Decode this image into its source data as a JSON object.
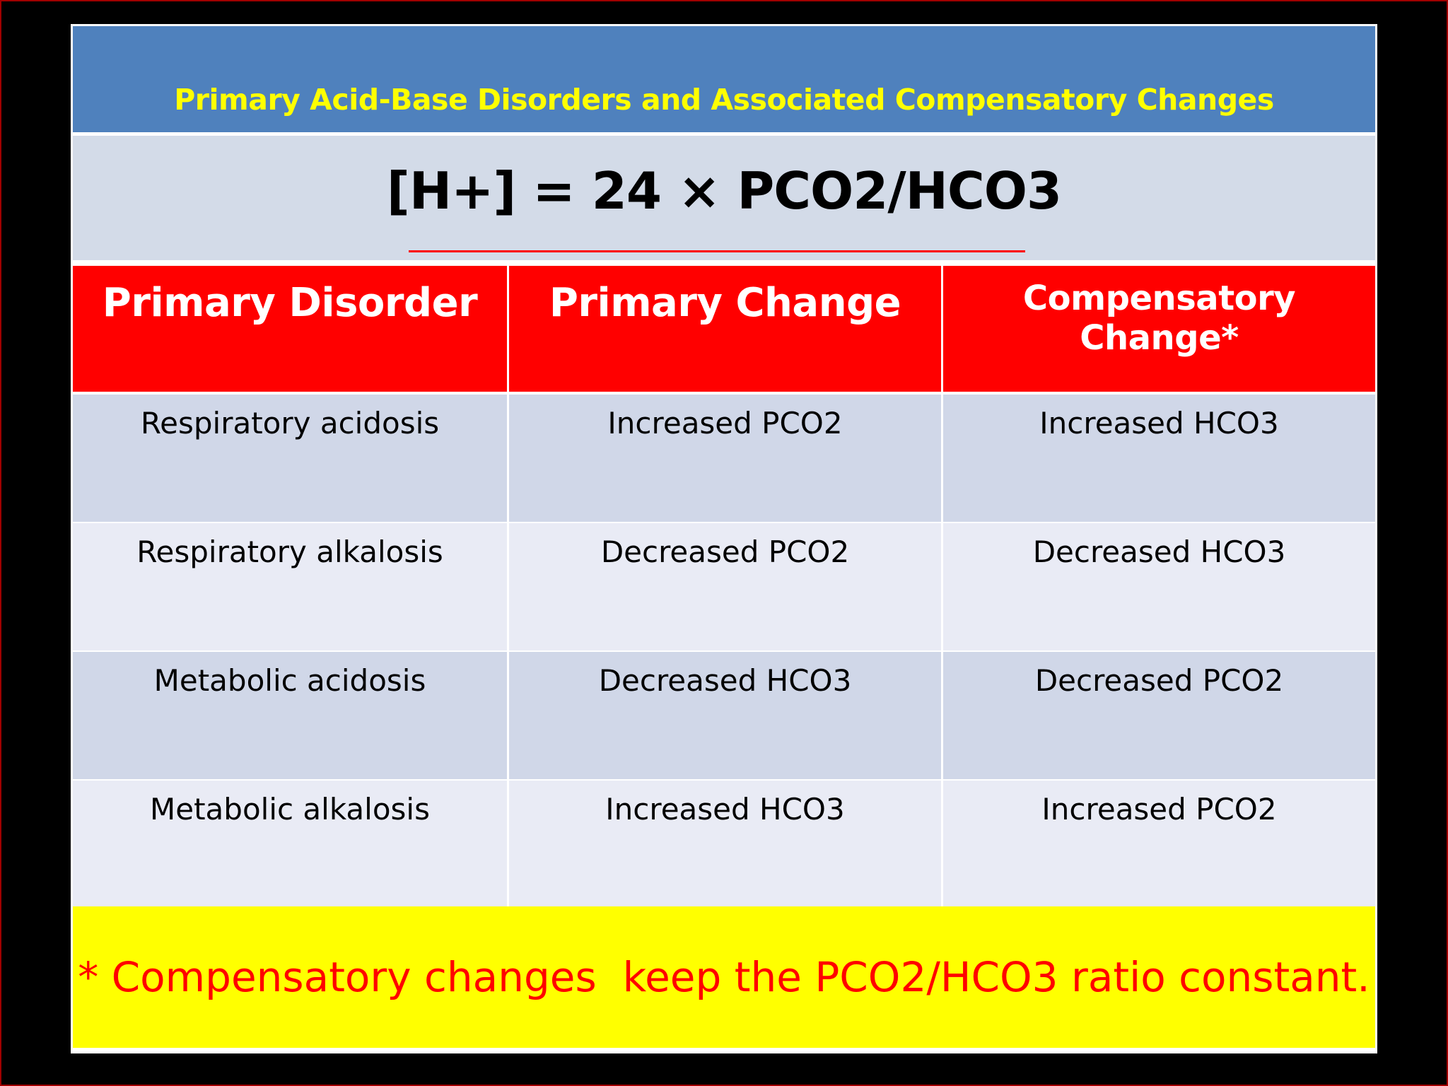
{
  "title": "Primary Acid-Base Disorders and Associated Compensatory Changes",
  "formula": "[H+] = 24 × PCO2/HCO3",
  "table": {
    "headers": [
      "Primary Disorder",
      "Primary Change",
      "Compensatory Change*"
    ],
    "rows": [
      [
        "Respiratory acidosis",
        "Increased PCO2",
        "Increased HCO3"
      ],
      [
        "Respiratory alkalosis",
        "Decreased PCO2",
        "Decreased HCO3"
      ],
      [
        "Metabolic acidosis",
        "Decreased HCO3",
        "Decreased PCO2"
      ],
      [
        "Metabolic alkalosis",
        "Increased HCO3",
        "Increased PCO2"
      ]
    ]
  },
  "footnote": "* Compensatory changes  keep the PCO2/HCO3 ratio constant.",
  "colors": {
    "title_bar": "#4f81bd",
    "title_text": "#ffff00",
    "header_bg": "#ff0000",
    "footnote_bg": "#ffff00",
    "footnote_text": "#ff0000",
    "formula_underline": "#ff0000"
  }
}
